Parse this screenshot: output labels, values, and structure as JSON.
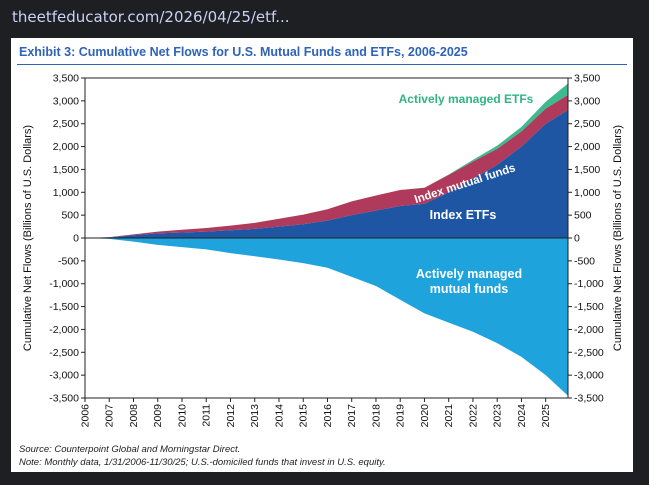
{
  "browser": {
    "url": "theetfeducator.com/2026/04/25/etf..."
  },
  "chart_data": {
    "type": "area",
    "title": "Exhibit 3: Cumulative Net Flows for U.S. Mutual Funds and ETFs, 2006-2025",
    "ylabel_left": "Cumulative Net Flows (Billions of U.S. Dollars)",
    "ylabel_right": "Cumulative Net Flows (Billions of U.S. Dollars)",
    "ylim": [
      -3500,
      3500
    ],
    "yticks": [
      "3,500",
      "3,000",
      "2,500",
      "2,000",
      "1,500",
      "1,000",
      "500",
      "0",
      "-500",
      "-1,000",
      "-1,500",
      "-2,000",
      "-2,500",
      "-3,000",
      "-3,500"
    ],
    "yticks_right": [
      "3,500",
      "3,000",
      "2,500",
      "2,000",
      "1,500",
      "1,000",
      "500",
      "0",
      "-500",
      "-1,000",
      "-1,500",
      "-2,000",
      "-2,500",
      "-3,000",
      "-3,500"
    ],
    "ytick_values": [
      3500,
      3000,
      2500,
      2000,
      1500,
      1000,
      500,
      0,
      -500,
      -1000,
      -1500,
      -2000,
      -2500,
      -3000,
      -3500
    ],
    "xlim": [
      2006,
      2025.92
    ],
    "xticks": [
      "2006",
      "2007",
      "2008",
      "2009",
      "2010",
      "2011",
      "2012",
      "2013",
      "2014",
      "2015",
      "2016",
      "2017",
      "2018",
      "2019",
      "2020",
      "2021",
      "2022",
      "2023",
      "2024",
      "2025"
    ],
    "xtick_values": [
      2006,
      2007,
      2008,
      2009,
      2010,
      2011,
      2012,
      2013,
      2014,
      2015,
      2016,
      2017,
      2018,
      2019,
      2020,
      2021,
      2022,
      2023,
      2024,
      2025
    ],
    "x": [
      2006,
      2007,
      2008,
      2009,
      2010,
      2011,
      2012,
      2013,
      2014,
      2015,
      2016,
      2017,
      2018,
      2019,
      2020,
      2021,
      2022,
      2023,
      2024,
      2025,
      2025.92
    ],
    "series": [
      {
        "name": "Index ETFs",
        "color": "#1f56a4",
        "values": [
          0,
          10,
          60,
          100,
          120,
          140,
          170,
          200,
          250,
          300,
          380,
          500,
          600,
          700,
          750,
          1000,
          1300,
          1600,
          2000,
          2500,
          2800
        ]
      },
      {
        "name": "Index mutual funds",
        "color": "#b03a5b",
        "values": [
          0,
          10,
          20,
          40,
          60,
          80,
          100,
          130,
          170,
          210,
          250,
          300,
          330,
          350,
          350,
          380,
          370,
          350,
          330,
          330,
          330
        ]
      },
      {
        "name": "Actively managed ETFs",
        "color": "#3dbb8f",
        "values": [
          0,
          0,
          0,
          0,
          0,
          0,
          0,
          0,
          0,
          0,
          0,
          0,
          0,
          0,
          0,
          10,
          40,
          70,
          100,
          150,
          250
        ]
      },
      {
        "name": "Actively managed mutual funds",
        "color": "#1ea3dd",
        "values": [
          0,
          -20,
          -80,
          -150,
          -200,
          -250,
          -330,
          -400,
          -470,
          -550,
          -650,
          -850,
          -1050,
          -1350,
          -1650,
          -1850,
          -2050,
          -2300,
          -2600,
          -3000,
          -3450
        ]
      }
    ],
    "labels": {
      "index_etfs": "Index ETFs",
      "index_mutual_funds": "Index mutual funds",
      "active_etfs": "Actively managed ETFs",
      "active_mf_line1": "Actively managed",
      "active_mf_line2": "mutual funds"
    },
    "source": "Source: Counterpoint Global and Morningstar Direct.",
    "note": "Note: Monthly data, 1/31/2006-11/30/25; U.S.-domiciled funds that invest in U.S. equity."
  }
}
